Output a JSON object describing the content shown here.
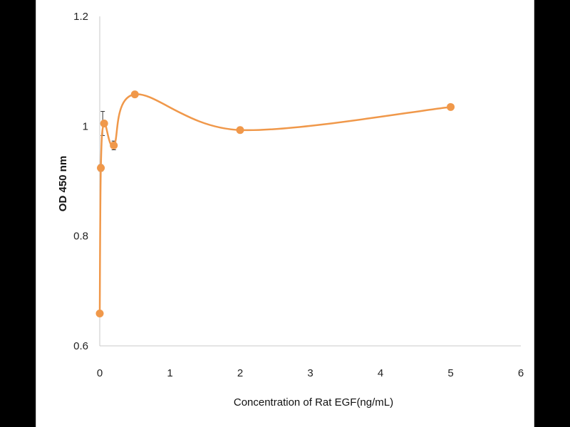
{
  "chart_data": {
    "type": "scatter",
    "title": "",
    "xlabel": "Concentration of Rat EGF(ng/mL)",
    "ylabel": "OD 450 nm",
    "xlim": [
      0,
      6
    ],
    "ylim": [
      0.6,
      1.2
    ],
    "x_ticks": [
      "0",
      "1",
      "2",
      "3",
      "4",
      "5",
      "6"
    ],
    "y_ticks": [
      "0.6",
      "0.8",
      "1",
      "1.2"
    ],
    "grid": false,
    "legend": "none",
    "smooth_line": true,
    "series": [
      {
        "color": "#f0984a",
        "x": [
          0,
          0.0156,
          0.0625,
          0.2,
          0.5,
          2,
          5
        ],
        "y": [
          0.659,
          0.924,
          1.005,
          0.965,
          1.058,
          0.993,
          1.035
        ],
        "error": [
          0.004,
          0.006,
          0.022,
          0.008,
          0.004,
          0.004,
          0.004
        ]
      }
    ]
  }
}
